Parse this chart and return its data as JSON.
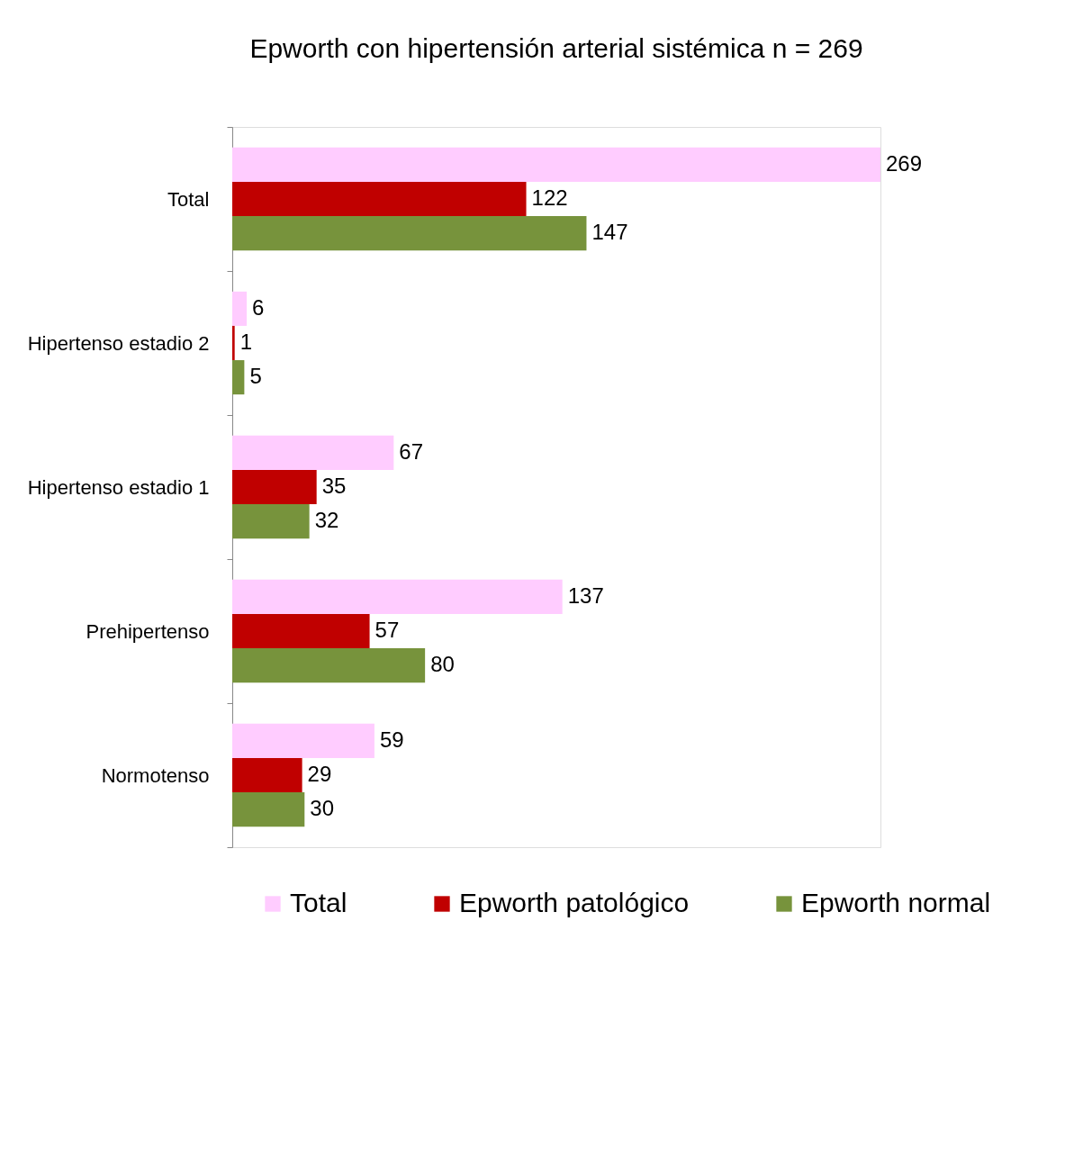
{
  "chart_data": {
    "type": "bar",
    "orientation": "horizontal",
    "title": "Epworth con hipertensión arterial sistémica      n = 269",
    "categories": [
      "Total",
      "Hipertenso estadio 2",
      "Hipertenso estadio 1",
      "Prehipertenso",
      "Normotenso"
    ],
    "series": [
      {
        "name": "Total",
        "color": "#ffccff",
        "values": [
          269,
          6,
          67,
          137,
          59
        ]
      },
      {
        "name": "Epworth patológico",
        "color": "#c00000",
        "values": [
          122,
          1,
          35,
          57,
          29
        ]
      },
      {
        "name": "Epworth normal",
        "color": "#77933c",
        "values": [
          147,
          5,
          32,
          80,
          30
        ]
      }
    ],
    "data_labels": true,
    "legend": "bottom"
  }
}
